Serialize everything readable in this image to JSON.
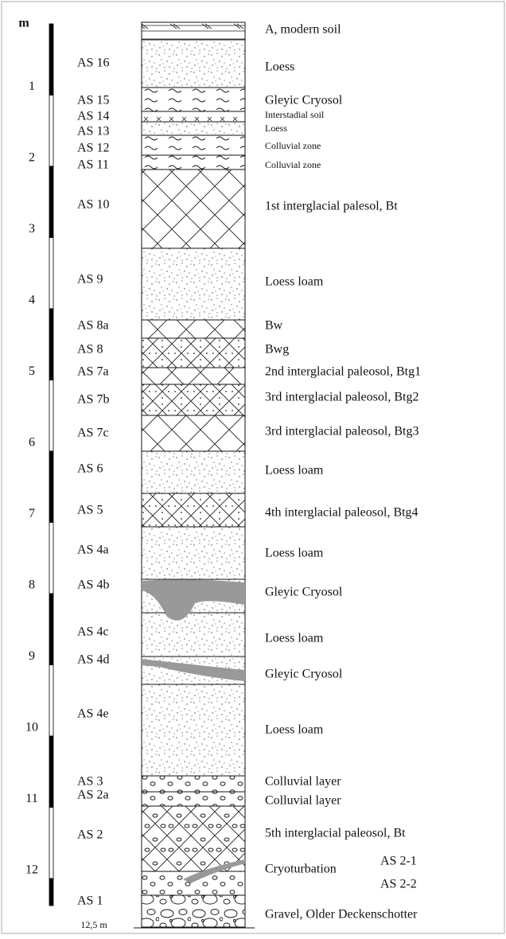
{
  "scale": {
    "unit": "m",
    "ticks": [
      1,
      2,
      3,
      4,
      5,
      6,
      7,
      8,
      9,
      10,
      11,
      12
    ],
    "bottom": "12,5 m"
  },
  "layers": [
    {
      "description": "A, modern soil"
    },
    {
      "code": "AS 16",
      "description": "Loess"
    },
    {
      "code": "AS 15",
      "description": "Gleyic Cryosol"
    },
    {
      "code": "AS 14",
      "description": "Interstadial soil"
    },
    {
      "code": "AS 13",
      "description": "Loess"
    },
    {
      "code": "AS 12",
      "description": "Colluvial zone"
    },
    {
      "code": "AS 11",
      "description": "Colluvial zone"
    },
    {
      "code": "AS 10",
      "description": "1st interglacial palesol, Bt"
    },
    {
      "code": "AS 9",
      "description": "Loess loam"
    },
    {
      "code": "AS 8a",
      "description": "Bw"
    },
    {
      "code": "AS 8",
      "description": "Bwg"
    },
    {
      "code": "AS 7a",
      "description": "2nd interglacial paleosol, Btg1"
    },
    {
      "code": "AS 7b",
      "description": "3rd interglacial paleosol, Btg2"
    },
    {
      "code": "AS 7c",
      "description": "3rd interglacial paleosol, Btg3"
    },
    {
      "code": "AS 6",
      "description": "Loess loam"
    },
    {
      "code": "AS 5",
      "description": "4th interglacial paleosol, Btg4"
    },
    {
      "code": "AS 4a",
      "description": "Loess loam"
    },
    {
      "code": "AS 4b",
      "description": "Gleyic Cryosol"
    },
    {
      "code": "AS 4c",
      "description": "Loess loam"
    },
    {
      "code": "AS 4d",
      "description": "Gleyic Cryosol"
    },
    {
      "code": "AS 4e",
      "description": "Loess loam"
    },
    {
      "code": "AS 3",
      "description": "Colluvial layer"
    },
    {
      "code": "AS 2a",
      "description": "Colluvial layer"
    },
    {
      "code": "AS 2",
      "description": "5th interglacial paleosol, Bt"
    },
    {
      "description": "Cryoturbation",
      "sublayers": [
        "AS 2-1",
        "AS 2-2"
      ]
    },
    {
      "code": "AS 1",
      "description": "Gravel, Older Deckenschotter"
    }
  ]
}
